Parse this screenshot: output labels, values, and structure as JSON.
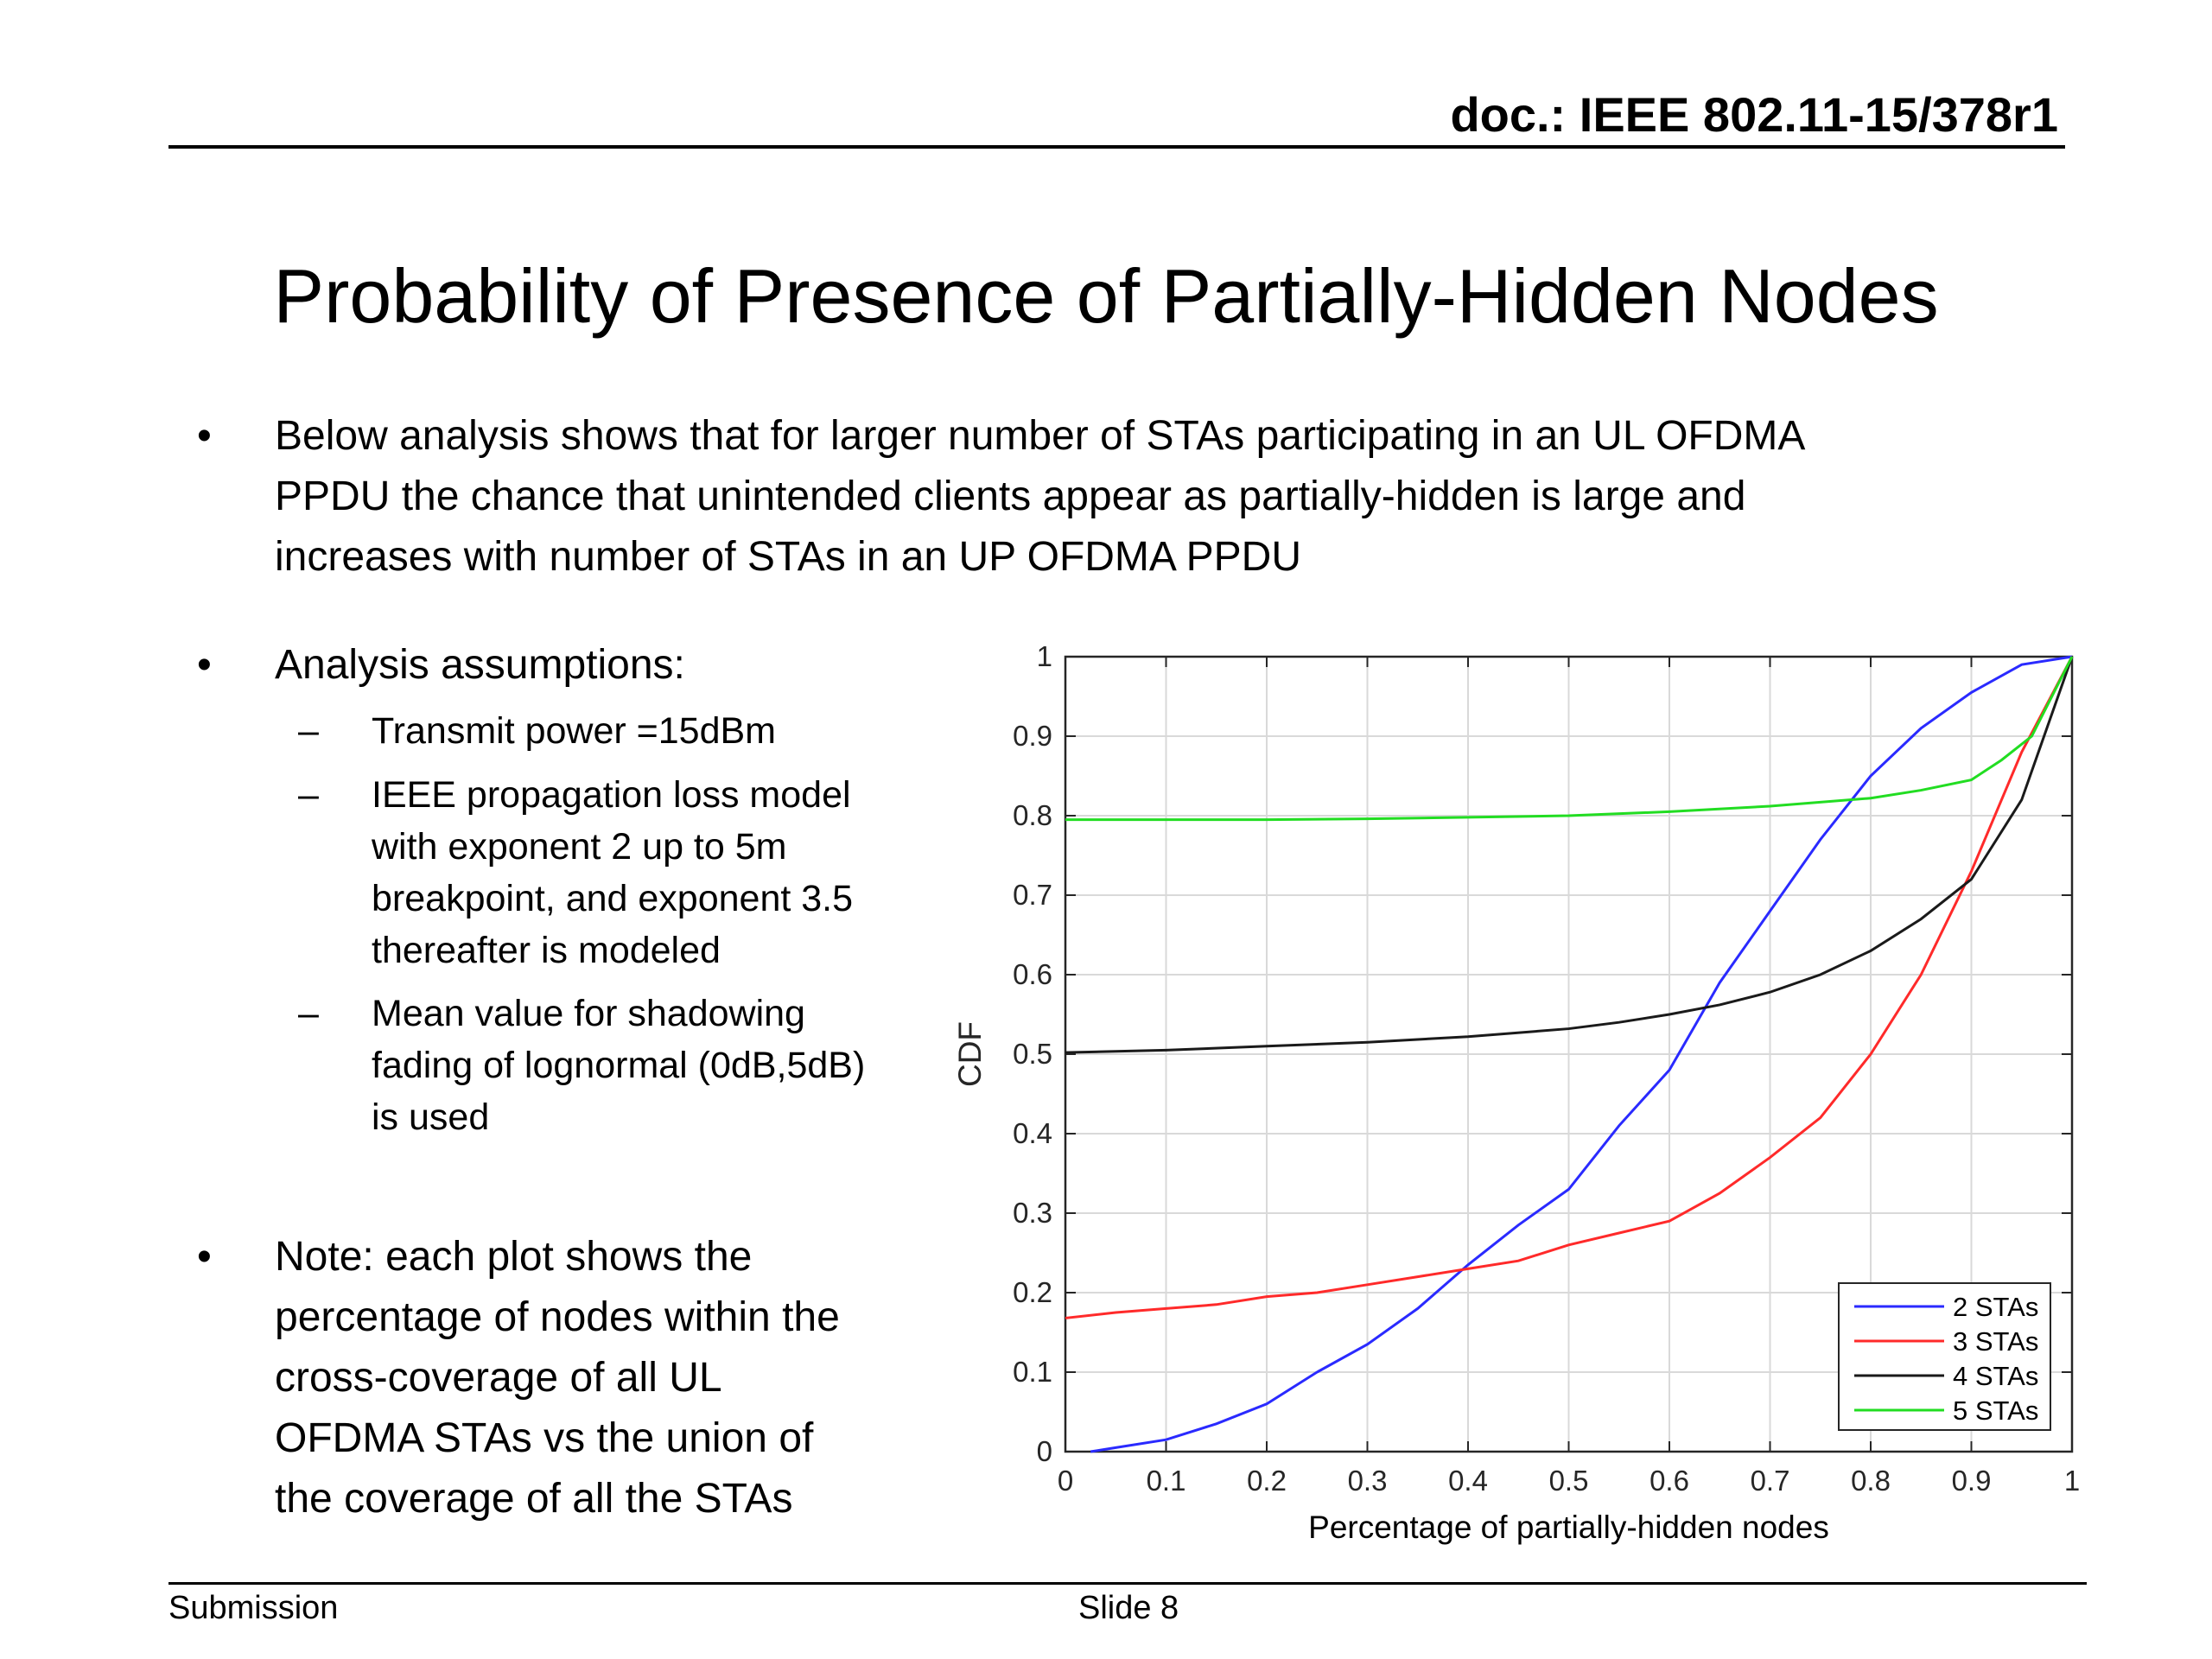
{
  "header": {
    "doc_id": "doc.: IEEE 802.11-15/378r1"
  },
  "title": "Probability of Presence of Partially-Hidden Nodes",
  "bullets": {
    "b1": [
      "Below analysis shows that for larger number of STAs participating in an UL OFDMA",
      "PPDU the chance that unintended clients appear as partially-hidden is large and",
      "increases with number of STAs in an UP OFDMA PPDU"
    ],
    "b2": [
      "Analysis assumptions:"
    ],
    "sub": {
      "s1": [
        "Transmit power =15dBm"
      ],
      "s2": [
        "IEEE propagation loss model",
        "with exponent 2 up to 5m",
        "breakpoint, and exponent 3.5",
        "thereafter is modeled"
      ],
      "s3": [
        "Mean value for shadowing",
        "fading of lognormal (0dB,5dB)",
        "is used"
      ]
    },
    "b3": [
      "Note: each plot shows the",
      "percentage of nodes within the",
      "cross-coverage of all UL",
      "OFDMA STAs vs the union of",
      "the coverage of all the STAs"
    ],
    "bullet_symbol": "•",
    "dash_symbol": "–"
  },
  "footer": {
    "left": "Submission",
    "center": "Slide 8"
  },
  "chart_data": {
    "type": "line",
    "xlabel": "Percentage of partially-hidden nodes",
    "ylabel": "CDF",
    "xlim": [
      0,
      1
    ],
    "ylim": [
      0,
      1
    ],
    "x_ticks": [
      "0",
      "0.1",
      "0.2",
      "0.3",
      "0.4",
      "0.5",
      "0.6",
      "0.7",
      "0.8",
      "0.9",
      "1"
    ],
    "y_ticks": [
      "0",
      "0.1",
      "0.2",
      "0.3",
      "0.4",
      "0.5",
      "0.6",
      "0.7",
      "0.8",
      "0.9",
      "1"
    ],
    "grid": true,
    "legend_position": "bottom-right",
    "series": [
      {
        "name": "2 STAs",
        "color": "#2a2aff",
        "x": [
          0.025,
          0.05,
          0.1,
          0.15,
          0.2,
          0.25,
          0.3,
          0.35,
          0.4,
          0.45,
          0.5,
          0.55,
          0.6,
          0.65,
          0.7,
          0.75,
          0.8,
          0.85,
          0.9,
          0.95,
          1.0
        ],
        "y": [
          0.0,
          0.005,
          0.015,
          0.035,
          0.06,
          0.1,
          0.135,
          0.18,
          0.235,
          0.285,
          0.33,
          0.41,
          0.48,
          0.59,
          0.68,
          0.77,
          0.85,
          0.91,
          0.955,
          0.99,
          1.0
        ]
      },
      {
        "name": "3 STAs",
        "color": "#ff2a2a",
        "x": [
          0.0,
          0.05,
          0.1,
          0.15,
          0.2,
          0.25,
          0.3,
          0.35,
          0.4,
          0.45,
          0.5,
          0.55,
          0.6,
          0.65,
          0.7,
          0.75,
          0.8,
          0.85,
          0.9,
          0.95,
          1.0
        ],
        "y": [
          0.168,
          0.175,
          0.18,
          0.185,
          0.195,
          0.2,
          0.21,
          0.22,
          0.23,
          0.24,
          0.26,
          0.275,
          0.29,
          0.325,
          0.37,
          0.42,
          0.5,
          0.6,
          0.73,
          0.88,
          1.0
        ]
      },
      {
        "name": "4 STAs",
        "color": "#1a1a1a",
        "x": [
          0.0,
          0.1,
          0.2,
          0.3,
          0.4,
          0.5,
          0.55,
          0.6,
          0.65,
          0.7,
          0.75,
          0.8,
          0.85,
          0.9,
          0.95,
          1.0
        ],
        "y": [
          0.502,
          0.505,
          0.51,
          0.515,
          0.522,
          0.532,
          0.54,
          0.55,
          0.562,
          0.578,
          0.6,
          0.63,
          0.67,
          0.72,
          0.82,
          1.0
        ]
      },
      {
        "name": "5 STAs",
        "color": "#22dd22",
        "x": [
          0.0,
          0.1,
          0.2,
          0.3,
          0.4,
          0.5,
          0.6,
          0.7,
          0.8,
          0.85,
          0.9,
          0.93,
          0.96,
          1.0
        ],
        "y": [
          0.795,
          0.795,
          0.795,
          0.796,
          0.798,
          0.8,
          0.805,
          0.812,
          0.822,
          0.832,
          0.845,
          0.87,
          0.9,
          1.0
        ]
      }
    ]
  }
}
